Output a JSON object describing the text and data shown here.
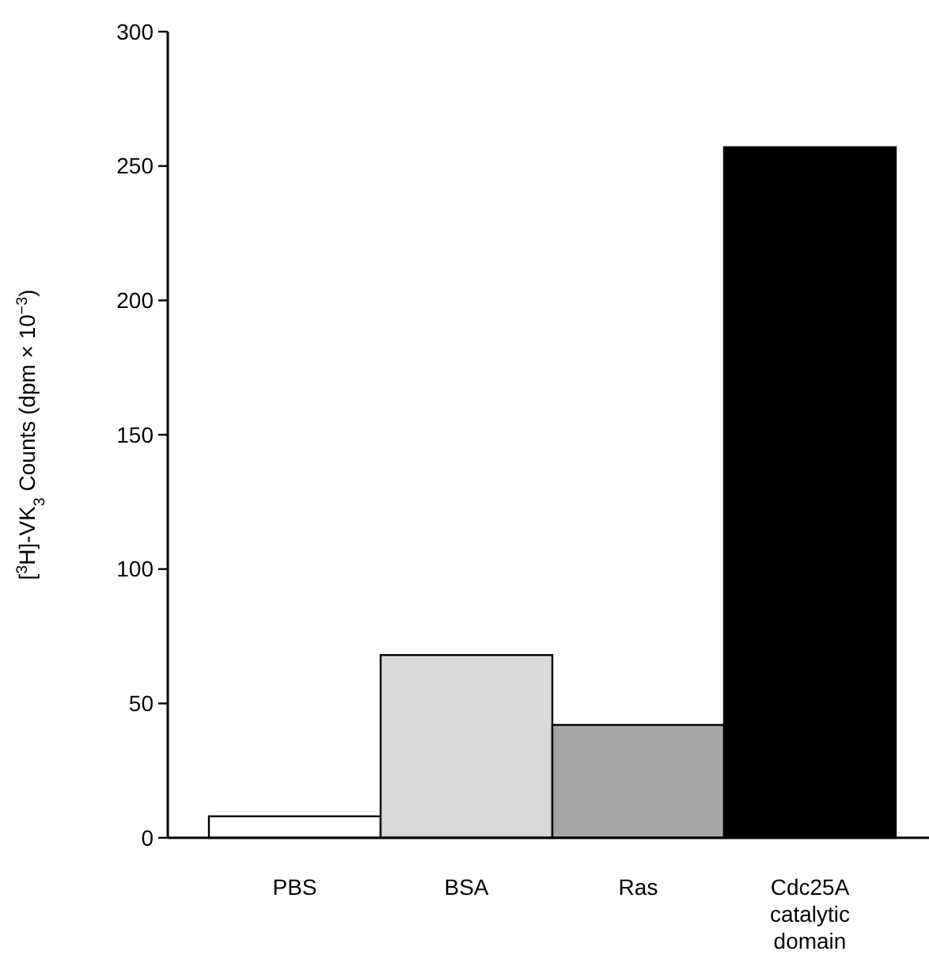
{
  "chart_data": {
    "type": "bar",
    "ylabel": "[$^{3}$H]-VK$_{3}$ Counts (dpm × 10$^{−3}$)",
    "categories": [
      "PBS",
      "BSA",
      "Ras",
      "Cdc25A catalytic domain"
    ],
    "values": [
      8,
      68,
      42,
      257
    ],
    "colors": [
      "#ffffff",
      "#d9d9d9",
      "#a6a6a6",
      "#000000"
    ],
    "ylim": [
      0,
      300
    ],
    "yticks": [
      0,
      50,
      100,
      150,
      200,
      250,
      300
    ],
    "grid": false
  }
}
